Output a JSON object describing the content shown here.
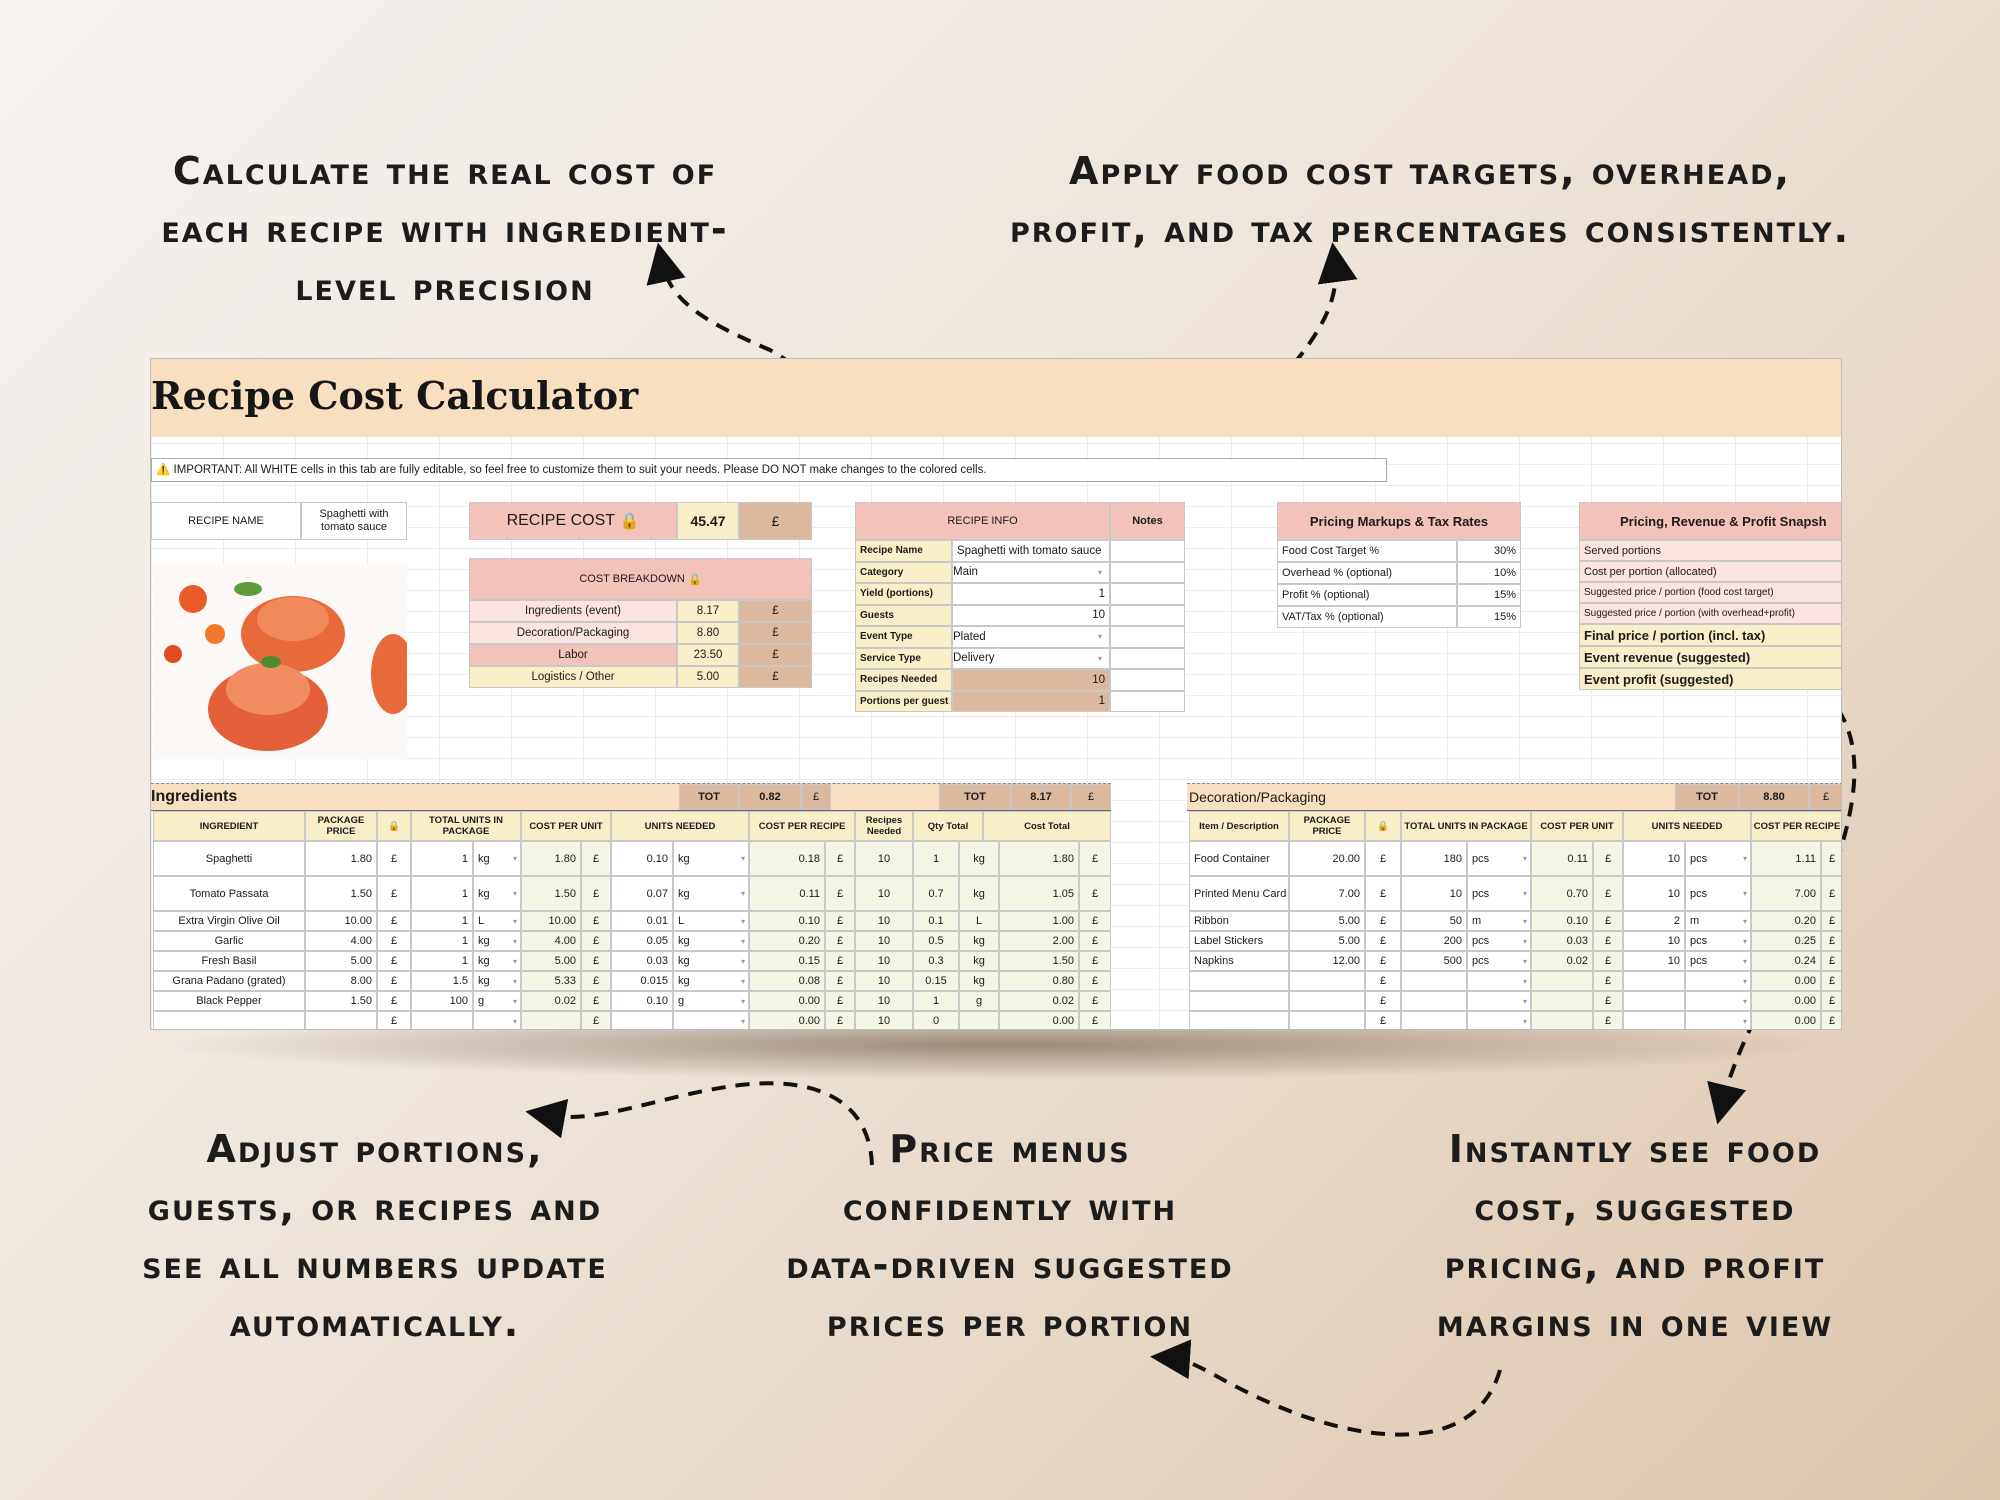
{
  "captions": {
    "top_left": "Calculate the real cost of each recipe with ingredient-level precision",
    "top_right": "Apply food cost targets, overhead, profit, and tax percentages consistently.",
    "bottom_left": "Adjust portions, guests, or recipes and see all numbers update automatically.",
    "bottom_mid": "Price menus confidently with data-driven suggested prices per portion",
    "bottom_right": "Instantly see food cost, suggested pricing, and profit margins in one view"
  },
  "sheet": {
    "title": "Recipe Cost Calculator",
    "notice": "⚠️ IMPORTANT: All WHITE cells in this tab are fully editable, so feel free to customize them to suit your needs. Please DO NOT make changes to the colored cells.",
    "recipe_name_label": "RECIPE NAME",
    "recipe_name_value": "Spaghetti with tomato sauce",
    "recipe_cost_label": "RECIPE COST",
    "recipe_cost_value": "45.47",
    "currency": "£",
    "lock": "🔒",
    "cost_breakdown": {
      "title": "COST BREAKDOWN",
      "rows": [
        {
          "label": "Ingredients (event)",
          "value": "8.17"
        },
        {
          "label": "Decoration/Packaging",
          "value": "8.80"
        },
        {
          "label": "Labor",
          "value": "23.50"
        },
        {
          "label": "Logistics / Other",
          "value": "5.00"
        }
      ]
    },
    "recipe_info": {
      "title": "RECIPE INFO",
      "notes_label": "Notes",
      "rows": [
        {
          "label": "Recipe Name",
          "value": "Spaghetti with tomato sauce"
        },
        {
          "label": "Category",
          "value": "Main"
        },
        {
          "label": "Yield (portions)",
          "value": "1"
        },
        {
          "label": "Guests",
          "value": "10"
        },
        {
          "label": "Event Type",
          "value": "Plated"
        },
        {
          "label": "Service Type",
          "value": "Delivery"
        },
        {
          "label": "Recipes Needed",
          "value": "10"
        },
        {
          "label": "Portions per guest",
          "value": "1"
        }
      ]
    },
    "pricing_markups": {
      "title": "Pricing Markups & Tax Rates",
      "rows": [
        {
          "label": "Food Cost Target %",
          "value": "30%"
        },
        {
          "label": "Overhead % (optional)",
          "value": "10%"
        },
        {
          "label": "Profit % (optional)",
          "value": "15%"
        },
        {
          "label": "VAT/Tax % (optional)",
          "value": "15%"
        }
      ]
    },
    "snapshot": {
      "title": "Pricing, Revenue & Profit Snapsh",
      "rows": [
        "Served portions",
        "Cost per portion (allocated)",
        "Suggested price / portion (food cost target)",
        "Suggested price / portion (with overhead+profit)"
      ],
      "bold_rows": [
        "Final price / portion (incl. tax)",
        "Event revenue (suggested)",
        "Event profit (suggested)"
      ]
    },
    "ingredients": {
      "title": "Ingredients",
      "tot_label": "TOT",
      "tot_value": "0.82",
      "tot2_label": "TOT",
      "tot2_value": "8.17",
      "headers": [
        "INGREDIENT",
        "PACKAGE PRICE",
        "TOTAL UNITS IN PACKAGE",
        "COST PER UNIT",
        "UNITS NEEDED",
        "COST PER RECIPE",
        "Recipes Needed",
        "Qty Total",
        "Cost Total"
      ],
      "rows": [
        [
          "Spaghetti",
          "1.80",
          "1",
          "kg",
          "1.80",
          "0.10",
          "kg",
          "0.18",
          "10",
          "1",
          "kg",
          "1.80"
        ],
        [
          "Tomato Passata",
          "1.50",
          "1",
          "kg",
          "1.50",
          "0.07",
          "kg",
          "0.11",
          "10",
          "0.7",
          "kg",
          "1.05"
        ],
        [
          "Extra Virgin Olive Oil",
          "10.00",
          "1",
          "L",
          "10.00",
          "0.01",
          "L",
          "0.10",
          "10",
          "0.1",
          "L",
          "1.00"
        ],
        [
          "Garlic",
          "4.00",
          "1",
          "kg",
          "4.00",
          "0.05",
          "kg",
          "0.20",
          "10",
          "0.5",
          "kg",
          "2.00"
        ],
        [
          "Fresh Basil",
          "5.00",
          "1",
          "kg",
          "5.00",
          "0.03",
          "kg",
          "0.15",
          "10",
          "0.3",
          "kg",
          "1.50"
        ],
        [
          "Grana Padano (grated)",
          "8.00",
          "1.5",
          "kg",
          "5.33",
          "0.015",
          "kg",
          "0.08",
          "10",
          "0.15",
          "kg",
          "0.80"
        ],
        [
          "Black Pepper",
          "1.50",
          "100",
          "g",
          "0.02",
          "0.10",
          "g",
          "0.00",
          "10",
          "1",
          "g",
          "0.02"
        ],
        [
          "",
          "",
          "",
          "",
          "",
          "",
          "",
          "0.00",
          "10",
          "0",
          "",
          "0.00"
        ]
      ]
    },
    "decoration": {
      "title": "Decoration/Packaging",
      "tot_label": "TOT",
      "tot_value": "8.80",
      "headers": [
        "Item / Description",
        "PACKAGE PRICE",
        "TOTAL UNITS IN PACKAGE",
        "COST PER UNIT",
        "UNITS NEEDED",
        "COST PER RECIPE"
      ],
      "rows": [
        [
          "Food Container",
          "20.00",
          "180",
          "pcs",
          "0.11",
          "10",
          "pcs",
          "1.11"
        ],
        [
          "Printed Menu Card",
          "7.00",
          "10",
          "pcs",
          "0.70",
          "10",
          "pcs",
          "7.00"
        ],
        [
          "Ribbon",
          "5.00",
          "50",
          "m",
          "0.10",
          "2",
          "m",
          "0.20"
        ],
        [
          "Label Stickers",
          "5.00",
          "200",
          "pcs",
          "0.03",
          "10",
          "pcs",
          "0.25"
        ],
        [
          "Napkins",
          "12.00",
          "500",
          "pcs",
          "0.02",
          "10",
          "pcs",
          "0.24"
        ],
        [
          "",
          "",
          "",
          "",
          "",
          "",
          "",
          "0.00"
        ],
        [
          "",
          "",
          "",
          "",
          "",
          "",
          "",
          "0.00"
        ],
        [
          "",
          "",
          "",
          "",
          "",
          "",
          "",
          "0.00"
        ]
      ]
    }
  }
}
